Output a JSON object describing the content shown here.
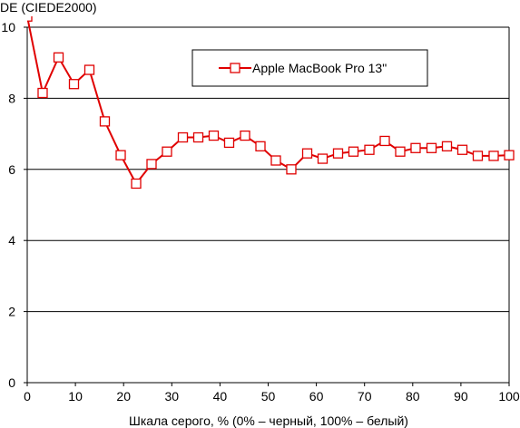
{
  "chart_data": {
    "type": "line",
    "title": "",
    "ylabel": "DE (CIEDE2000)",
    "xlabel": "Шкала серого, % (0% – черный, 100% – белый)",
    "xlim": [
      0,
      100
    ],
    "ylim": [
      0,
      10
    ],
    "x_ticks": [
      "0",
      "10",
      "20",
      "30",
      "40",
      "50",
      "60",
      "70",
      "80",
      "90",
      "100"
    ],
    "y_ticks": [
      "0",
      "2",
      "4",
      "6",
      "8",
      "10"
    ],
    "grid": "horizontal",
    "legend_position": "top-right",
    "series": [
      {
        "name": "Apple MacBook Pro 13\"",
        "color": "#e00000",
        "marker": "square",
        "x": [
          0,
          3.2,
          6.5,
          9.7,
          12.9,
          16.1,
          19.4,
          22.6,
          25.8,
          29.0,
          32.3,
          35.5,
          38.7,
          41.9,
          45.2,
          48.4,
          51.6,
          54.8,
          58.1,
          61.3,
          64.5,
          67.7,
          71.0,
          74.2,
          77.4,
          80.6,
          83.9,
          87.1,
          90.3,
          93.5,
          96.8,
          100
        ],
        "y": [
          10.3,
          8.15,
          9.15,
          8.4,
          8.8,
          7.35,
          6.4,
          5.6,
          6.15,
          6.5,
          6.9,
          6.9,
          6.95,
          6.75,
          6.95,
          6.65,
          6.25,
          6.0,
          6.45,
          6.3,
          6.45,
          6.5,
          6.55,
          6.8,
          6.5,
          6.6,
          6.6,
          6.65,
          6.55,
          6.38,
          6.38,
          6.4
        ]
      }
    ]
  }
}
